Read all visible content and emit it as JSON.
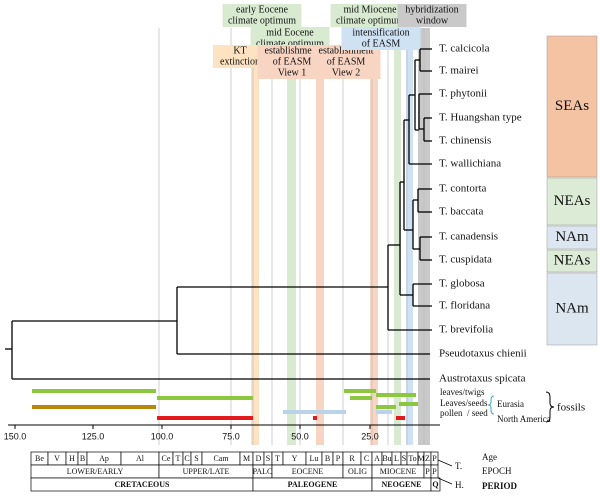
{
  "annotations": {
    "early_eocene": [
      "early Eocene",
      "climate optimum"
    ],
    "mid_eocene": [
      "mid Eocene",
      "climate optimum"
    ],
    "kt": [
      "KT",
      "extinction"
    ],
    "easm_view1": [
      "establishment",
      "of EASM",
      "View 1"
    ],
    "easm_view2": [
      "establishment",
      "of EASM",
      "View 2"
    ],
    "mid_miocene": [
      "mid Miocene",
      "climate optimum"
    ],
    "easm_intensification": [
      "intensification",
      "of EASM"
    ],
    "hybridization": [
      "hybridization",
      "window"
    ]
  },
  "tree": {
    "tips": [
      "T. calcicola",
      "T. mairei",
      "T. phytonii",
      "T. Huangshan type",
      "T. chinensis",
      "T. wallichiana",
      "T. contorta",
      "T. baccata",
      "T. canadensis",
      "T. cuspidata",
      "T. globosa",
      "T. floridana",
      "T. brevifolia",
      "Pseudotaxus chienii",
      "Austrotaxus spicata"
    ]
  },
  "regions": [
    "SEAs",
    "NEAs",
    "NAm",
    "NEAs",
    "NAm"
  ],
  "axis": {
    "ticks": [
      "150.0",
      "125.0",
      "100.0",
      "75.0",
      "50.0",
      "25.0"
    ]
  },
  "fossil_legend": {
    "leaves_twigs": "leaves/twigs",
    "leaves_seeds": "Leaves/seeds",
    "pollen": "pollen",
    "seed": "/ seed",
    "eurasia": "Eurasia",
    "north_america": "North America",
    "fossils": "fossils"
  },
  "timescale": {
    "ages": [
      "Be",
      "V",
      "H",
      "B",
      "Ap",
      "Al",
      "Ce",
      "T",
      "C",
      "S",
      "Cam",
      "M",
      "D",
      "S",
      "T",
      "Y",
      "Lu",
      "B",
      "P",
      "R",
      "C",
      "A",
      "Bu",
      "L",
      "S",
      "To",
      "M",
      "Z",
      "P"
    ],
    "epochs": [
      "LOWER/EARLY",
      "UPPER/LATE",
      "PALC",
      "EOCENE",
      "OLIG",
      "MIOCENE",
      "P",
      "P"
    ],
    "periods": [
      "CRETACEOUS",
      "PALEOGENE",
      "NEOGENE",
      "Q"
    ],
    "row_labels": [
      "Age",
      "EPOCH",
      "PERIOD"
    ],
    "markers": [
      "T.",
      "H."
    ]
  }
}
